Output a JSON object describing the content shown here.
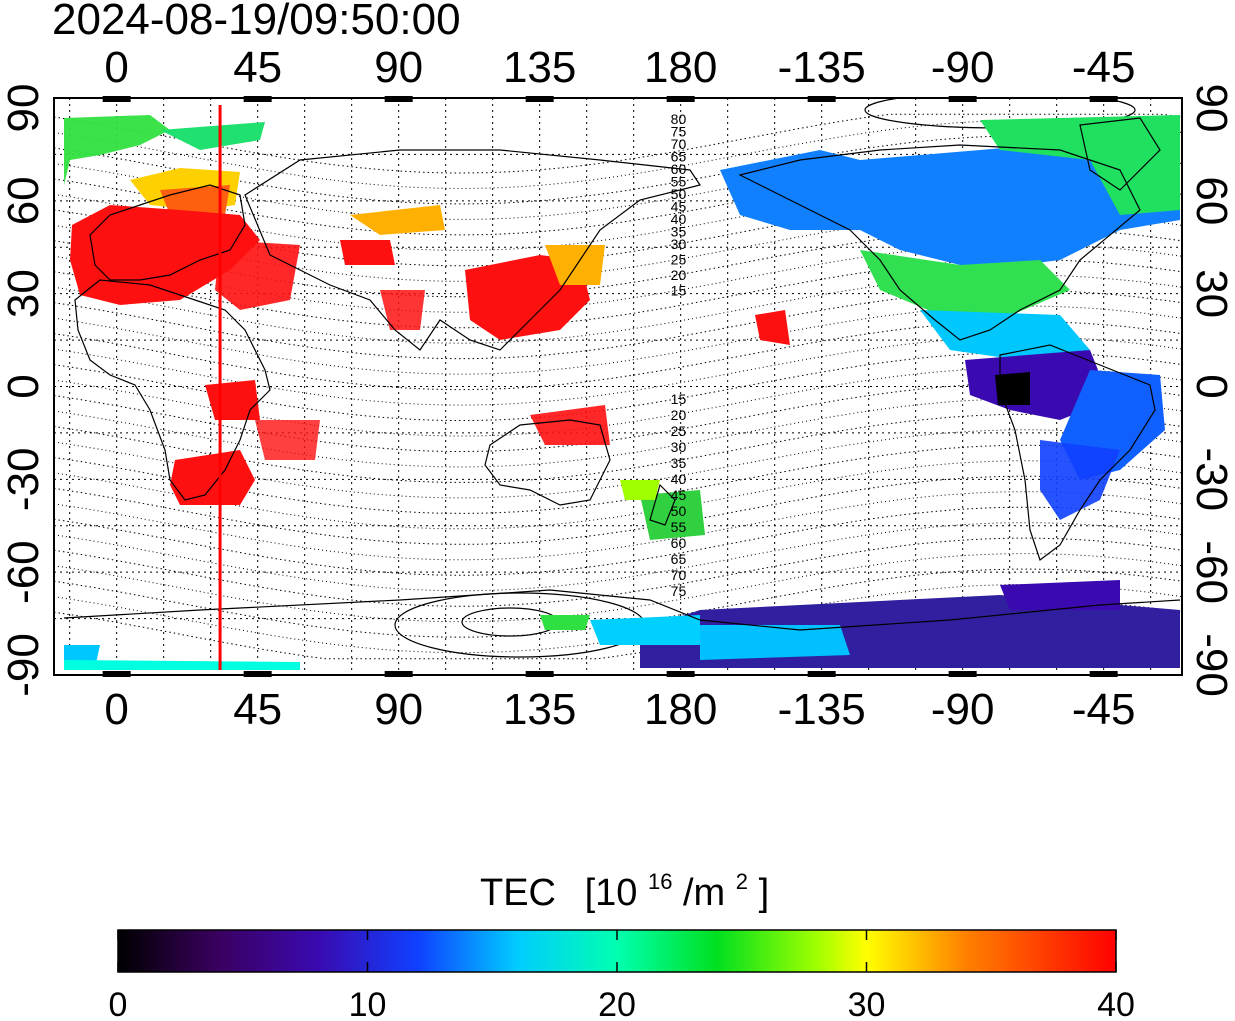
{
  "timestamp": "2024-08-19/09:50:00",
  "lon_labels": [
    "0",
    "45",
    "90",
    "135",
    "180",
    "-135",
    "-90",
    "-45"
  ],
  "lat_labels": [
    "90",
    "60",
    "30",
    "0",
    "-30",
    "-60",
    "-90"
  ],
  "contour_labels_north": [
    "80",
    "75",
    "70",
    "65",
    "60",
    "55",
    "50",
    "45",
    "40",
    "35",
    "30",
    "25",
    "20",
    "15"
  ],
  "contour_labels_south": [
    "15",
    "20",
    "25",
    "30",
    "35",
    "40",
    "45",
    "50",
    "55",
    "60",
    "65",
    "70",
    "75"
  ],
  "colorbar": {
    "title": "TEC",
    "unit_base": "[10",
    "unit_exp": "16",
    "unit_mid": "/m",
    "unit_exp2": "2",
    "unit_end": "]",
    "ticks": [
      "0",
      "10",
      "20",
      "30",
      "40"
    ],
    "min": 0,
    "max": 40
  },
  "terminator_longitude": 33,
  "colors": {
    "high_tec": "#ff1010",
    "terminator": "#ff0000"
  }
}
